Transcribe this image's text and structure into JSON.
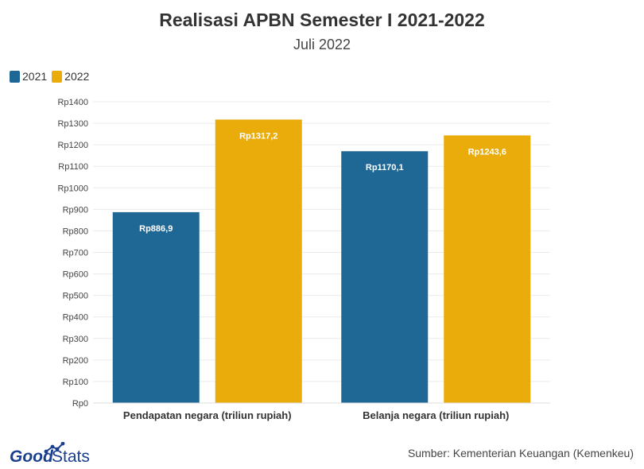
{
  "header": {
    "title": "Realisasi APBN Semester I 2021-2022",
    "subtitle": "Juli 2022"
  },
  "legend": [
    {
      "label": "2021",
      "color": "#1f6896"
    },
    {
      "label": "2022",
      "color": "#e9ac0a"
    }
  ],
  "chart_data": {
    "type": "bar",
    "categories": [
      "Pendapatan negara (triliun rupiah)",
      "Belanja negara (triliun rupiah)"
    ],
    "series": [
      {
        "name": "2021",
        "values": [
          886.9,
          1170.1
        ],
        "labels": [
          "Rp886,9",
          "Rp1170,1"
        ],
        "color": "#1f6896"
      },
      {
        "name": "2022",
        "values": [
          1317.2,
          1243.6
        ],
        "labels": [
          "Rp1317,2",
          "Rp1243,6"
        ],
        "color": "#e9ac0a"
      }
    ],
    "ylim": [
      0,
      1400
    ],
    "yticks": [
      0,
      100,
      200,
      300,
      400,
      500,
      600,
      700,
      800,
      900,
      1000,
      1100,
      1200,
      1300,
      1400
    ],
    "ytick_labels": [
      "Rp0",
      "Rp100",
      "Rp200",
      "Rp300",
      "Rp400",
      "Rp500",
      "Rp600",
      "Rp700",
      "Rp800",
      "Rp900",
      "Rp1000",
      "Rp1100",
      "Rp1200",
      "Rp1300",
      "Rp1400"
    ],
    "grid": true,
    "legend_position": "top-left"
  },
  "footer": {
    "brand": "GoodStats",
    "source": "Sumber: Kementerian Keuangan (Kemenkeu)"
  }
}
